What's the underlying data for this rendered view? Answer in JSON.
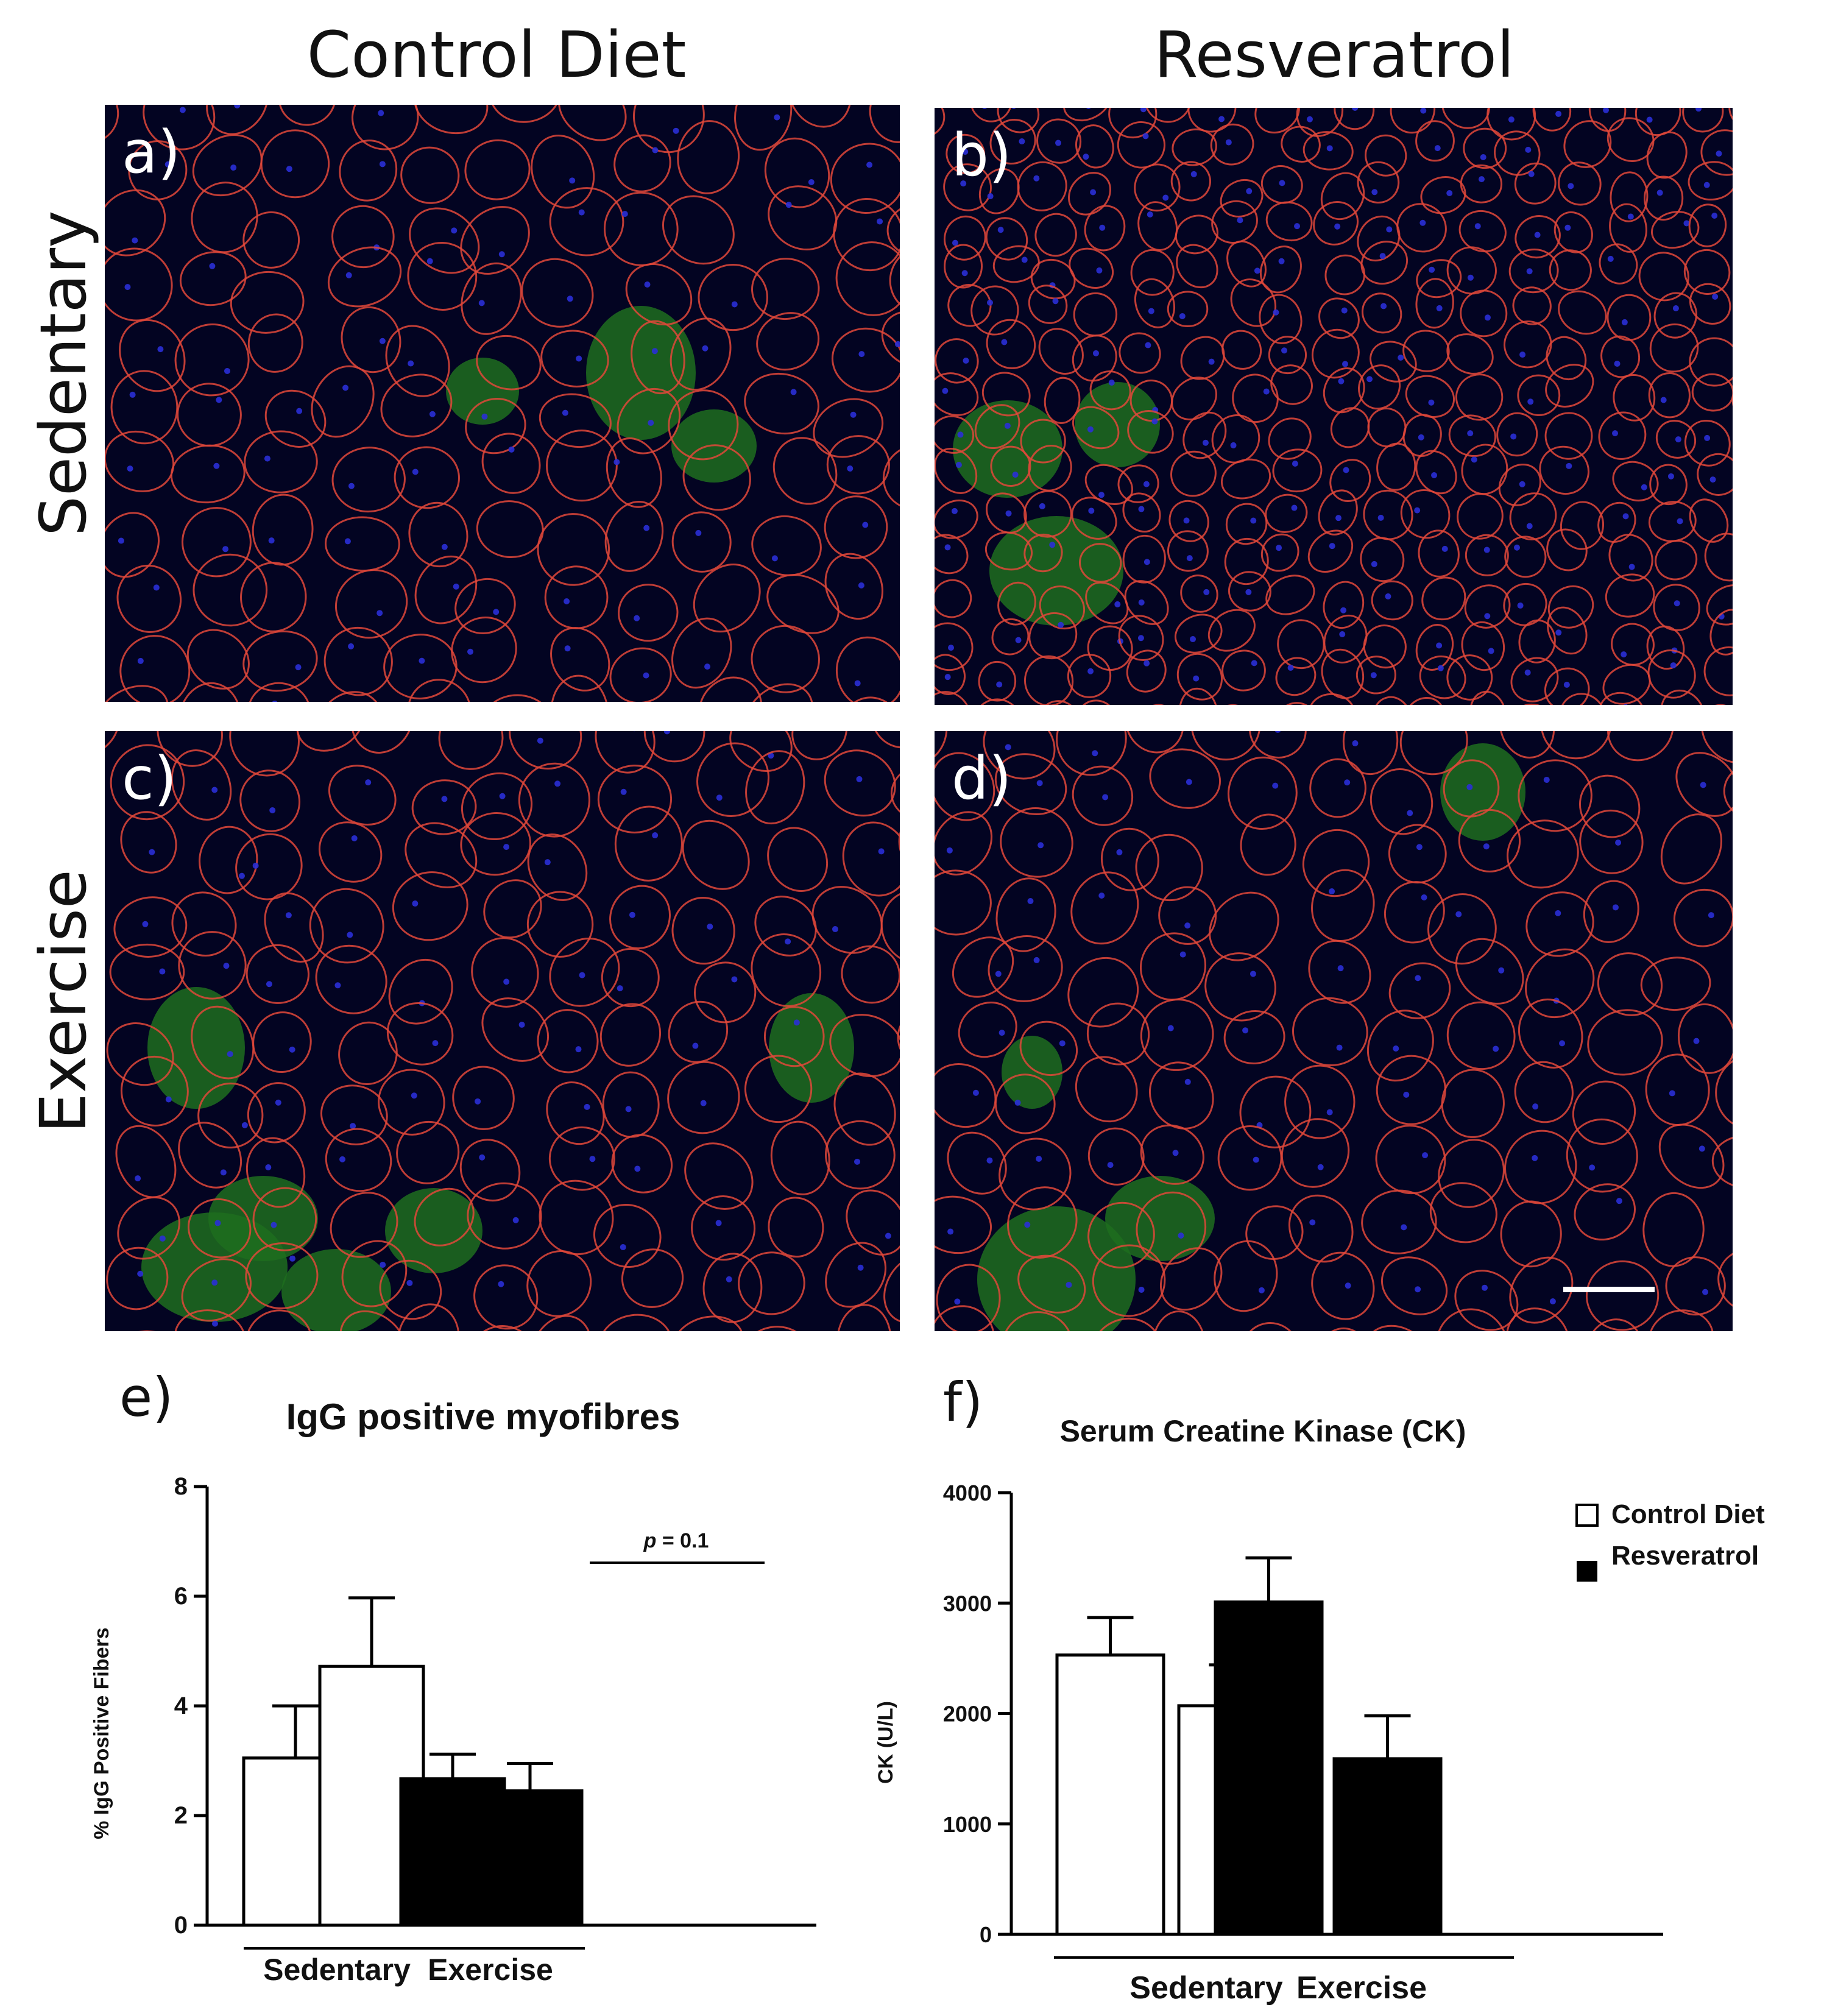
{
  "figure": {
    "column_headers": [
      "Control Diet",
      "Resveratrol"
    ],
    "row_headers": [
      "Sedentary",
      "Exercise"
    ],
    "panels": [
      {
        "letter": "a)"
      },
      {
        "letter": "b)"
      },
      {
        "letter": "c)"
      },
      {
        "letter": "d)"
      }
    ],
    "colors": {
      "membrane_red": "#e0483a",
      "nuclei_blue": "#2a2fd6",
      "igg_green": "#1f6d1f",
      "background": "#030422"
    }
  },
  "chart_data": [
    {
      "letter": "e)",
      "type": "bar",
      "title": "IgG positive myofibres",
      "xlabel": "",
      "ylabel": "% IgG Positive Fibers",
      "categories": [
        "Sedentary",
        "Exercise"
      ],
      "series": [
        {
          "name": "Control Diet",
          "values": [
            3.05,
            4.72
          ],
          "errors": [
            0.95,
            1.25
          ],
          "fill": "#ffffff"
        },
        {
          "name": "Resveratrol",
          "values": [
            2.67,
            2.45
          ],
          "errors": [
            0.45,
            0.5
          ],
          "fill": "#000000"
        }
      ],
      "ylim": [
        0,
        8
      ],
      "yticks": [
        0,
        2,
        4,
        6,
        8
      ],
      "ytick_labels": [
        "0",
        "2",
        "4",
        "6",
        "8"
      ],
      "annotation": {
        "italic": "p",
        "text": " = 0.1"
      },
      "grid": false
    },
    {
      "letter": "f)",
      "type": "bar",
      "title": "Serum Creatine Kinase (CK)",
      "xlabel": "",
      "ylabel": "CK (U/L)",
      "categories": [
        "Sedentary",
        "Exercise"
      ],
      "series": [
        {
          "name": "Control Diet",
          "values": [
            2530,
            2070
          ],
          "errors": [
            340,
            370
          ],
          "fill": "#ffffff"
        },
        {
          "name": "Resveratrol",
          "values": [
            3010,
            1590
          ],
          "errors": [
            400,
            390
          ],
          "fill": "#000000"
        }
      ],
      "ylim": [
        0,
        4000
      ],
      "yticks": [
        0,
        1000,
        2000,
        3000,
        4000
      ],
      "ytick_labels": [
        "0",
        "1000",
        "2000",
        "3000",
        "4000"
      ],
      "legend": {
        "placement": "top-right",
        "entries": [
          "Control Diet",
          "Resveratrol"
        ]
      },
      "grid": false
    }
  ]
}
